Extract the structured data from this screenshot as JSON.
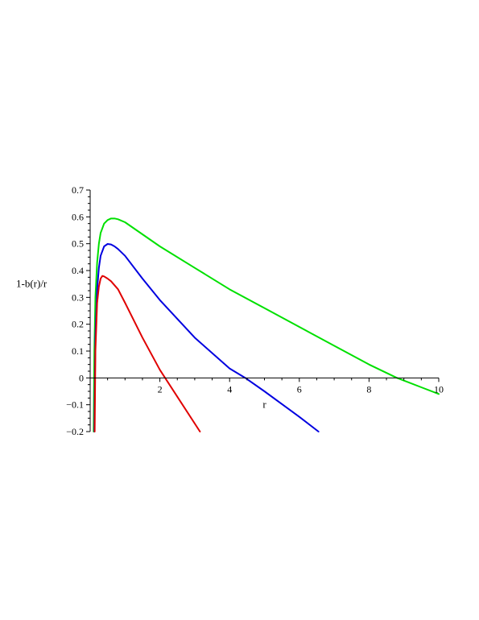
{
  "chart_data": {
    "type": "line",
    "title": "",
    "xlabel": "r",
    "ylabel": "1-b(r)/r",
    "xlim": [
      0,
      10
    ],
    "ylim": [
      -0.2,
      0.7
    ],
    "grid": false,
    "x_ticks": [
      2,
      4,
      6,
      8,
      10
    ],
    "y_ticks": [
      -0.2,
      -0.1,
      0,
      0.1,
      0.2,
      0.3,
      0.4,
      0.5,
      0.6,
      0.7
    ],
    "x_tick_labels": [
      "2",
      "4",
      "6",
      "8",
      "10"
    ],
    "y_tick_labels": [
      "−0.2",
      "−0.1",
      "0",
      "0.1",
      "0.2",
      "0.3",
      "0.4",
      "0.5",
      "0.6",
      "0.7"
    ],
    "series": [
      {
        "color": "#00e000",
        "x": [
          0.1,
          0.12,
          0.15,
          0.2,
          0.25,
          0.3,
          0.4,
          0.5,
          0.6,
          0.7,
          0.8,
          1.0,
          1.5,
          2.0,
          3.0,
          4.0,
          5.0,
          6.0,
          7.0,
          8.0,
          8.8,
          9.5,
          10.0
        ],
        "y": [
          -0.2,
          0.1,
          0.3,
          0.43,
          0.5,
          0.54,
          0.575,
          0.588,
          0.594,
          0.594,
          0.591,
          0.58,
          0.535,
          0.49,
          0.41,
          0.33,
          0.26,
          0.19,
          0.12,
          0.05,
          0.0,
          -0.035,
          -0.06
        ]
      },
      {
        "color": "#0000e0",
        "x": [
          0.12,
          0.15,
          0.2,
          0.25,
          0.3,
          0.4,
          0.5,
          0.6,
          0.7,
          0.8,
          1.0,
          1.5,
          2.0,
          3.0,
          4.0,
          4.45,
          5.0,
          6.0,
          6.55
        ],
        "y": [
          -0.2,
          0.15,
          0.33,
          0.41,
          0.455,
          0.49,
          0.499,
          0.497,
          0.49,
          0.48,
          0.455,
          0.37,
          0.29,
          0.15,
          0.035,
          0.0,
          -0.05,
          -0.145,
          -0.2
        ]
      },
      {
        "color": "#e00000",
        "x": [
          0.13,
          0.15,
          0.2,
          0.25,
          0.3,
          0.35,
          0.4,
          0.5,
          0.6,
          0.8,
          1.0,
          1.5,
          2.0,
          2.15,
          2.5,
          3.15
        ],
        "y": [
          -0.2,
          0.1,
          0.28,
          0.34,
          0.37,
          0.38,
          0.378,
          0.37,
          0.36,
          0.33,
          0.28,
          0.15,
          0.03,
          0.0,
          -0.07,
          -0.2
        ]
      }
    ]
  }
}
